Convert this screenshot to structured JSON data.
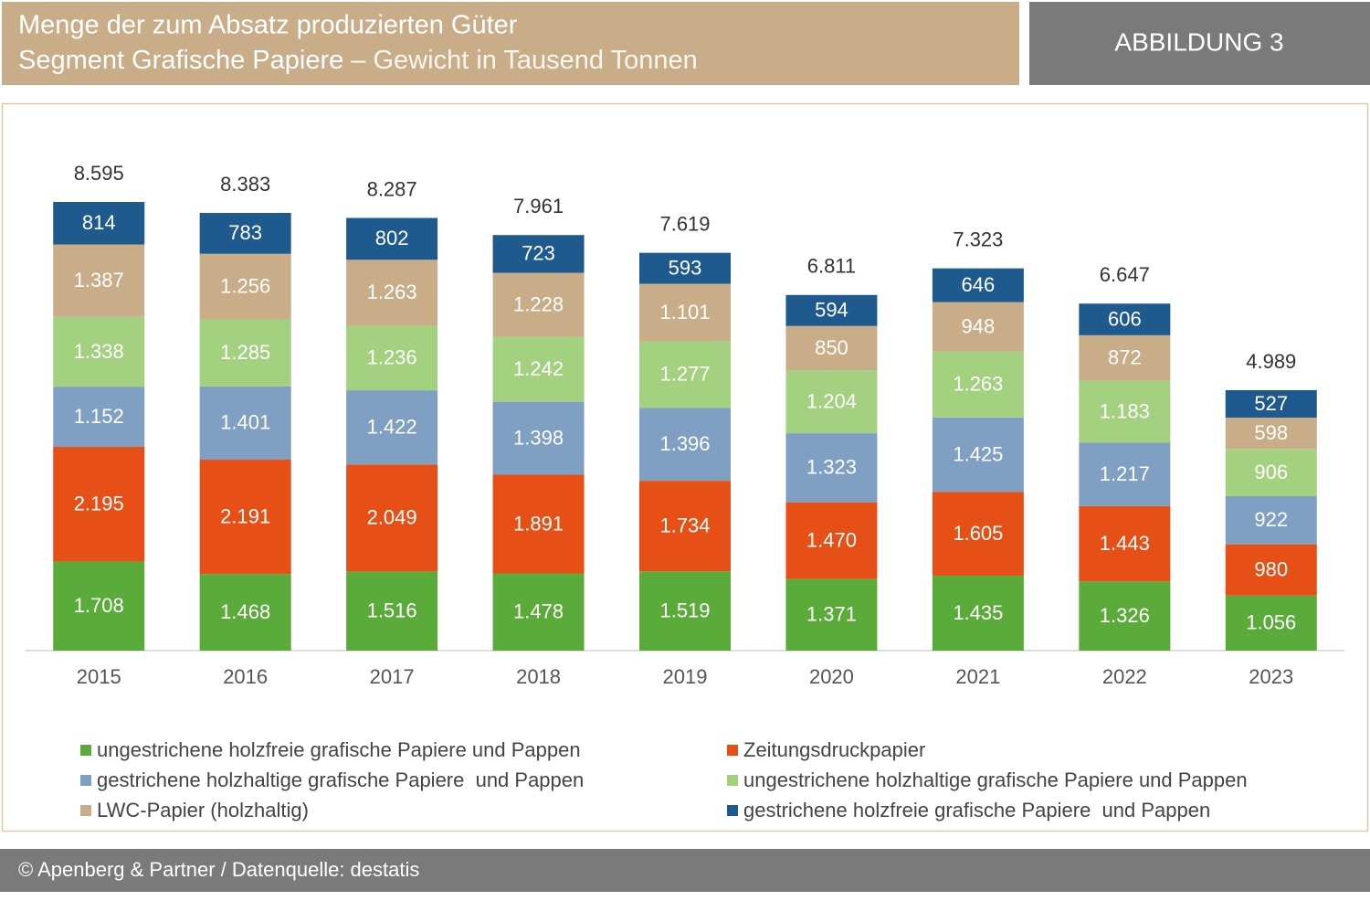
{
  "header": {
    "title_line1": "Menge der zum Absatz produzierten Güter",
    "title_line2_bold": "Segment Grafische Papiere –",
    "title_line2_light": "Gewicht in Tausend Tonnen",
    "badge": "ABBILDUNG 3"
  },
  "chart_data": {
    "type": "stacked_bar",
    "categories": [
      "2015",
      "2016",
      "2017",
      "2018",
      "2019",
      "2020",
      "2021",
      "2022",
      "2023"
    ],
    "series": [
      {
        "name": "ungestrichene holzfreie grafische Papiere und Pappen",
        "color": "#5aab3a",
        "values": [
          1708,
          1468,
          1516,
          1478,
          1519,
          1371,
          1435,
          1326,
          1056
        ],
        "value_labels": [
          "1.708",
          "1.468",
          "1.516",
          "1.478",
          "1.519",
          "1.371",
          "1.435",
          "1.326",
          "1.056"
        ]
      },
      {
        "name": "Zeitungsdruckpapier",
        "color": "#e65016",
        "values": [
          2195,
          2191,
          2049,
          1891,
          1734,
          1470,
          1605,
          1443,
          980
        ],
        "value_labels": [
          "2.195",
          "2.191",
          "2.049",
          "1.891",
          "1.734",
          "1.470",
          "1.605",
          "1.443",
          "980"
        ]
      },
      {
        "name": "gestrichene holzhaltige grafische Papiere  und Pappen",
        "color": "#7f9fc3",
        "values": [
          1152,
          1401,
          1422,
          1398,
          1396,
          1323,
          1425,
          1217,
          922
        ],
        "value_labels": [
          "1.152",
          "1.401",
          "1.422",
          "1.398",
          "1.396",
          "1.323",
          "1.425",
          "1.217",
          "922"
        ]
      },
      {
        "name": "ungestrichene holzhaltige grafische Papiere und Pappen",
        "color": "#a3d17f",
        "values": [
          1338,
          1285,
          1236,
          1242,
          1277,
          1204,
          1263,
          1183,
          906
        ],
        "value_labels": [
          "1.338",
          "1.285",
          "1.236",
          "1.242",
          "1.277",
          "1.204",
          "1.263",
          "1.183",
          "906"
        ]
      },
      {
        "name": "LWC-Papier (holzhaltig)",
        "color": "#c8ad88",
        "values": [
          1387,
          1256,
          1263,
          1228,
          1101,
          850,
          948,
          872,
          598
        ],
        "value_labels": [
          "1.387",
          "1.256",
          "1.263",
          "1.228",
          "1.101",
          "850",
          "948",
          "872",
          "598"
        ]
      },
      {
        "name": "gestrichene holzfreie grafische Papiere  und Pappen",
        "color": "#1f5a8e",
        "values": [
          814,
          783,
          802,
          723,
          593,
          594,
          646,
          606,
          527
        ],
        "value_labels": [
          "814",
          "783",
          "802",
          "723",
          "593",
          "594",
          "646",
          "606",
          "527"
        ]
      }
    ],
    "totals": {
      "values": [
        8595,
        8383,
        8287,
        7961,
        7619,
        6811,
        7323,
        6647,
        4989
      ],
      "value_labels": [
        "8.595",
        "8.383",
        "8.287",
        "7.961",
        "7.619",
        "6.811",
        "7.323",
        "6.647",
        "4.989"
      ]
    }
  },
  "footer": {
    "source": "© Apenberg & Partner / Datenquelle: destatis"
  }
}
